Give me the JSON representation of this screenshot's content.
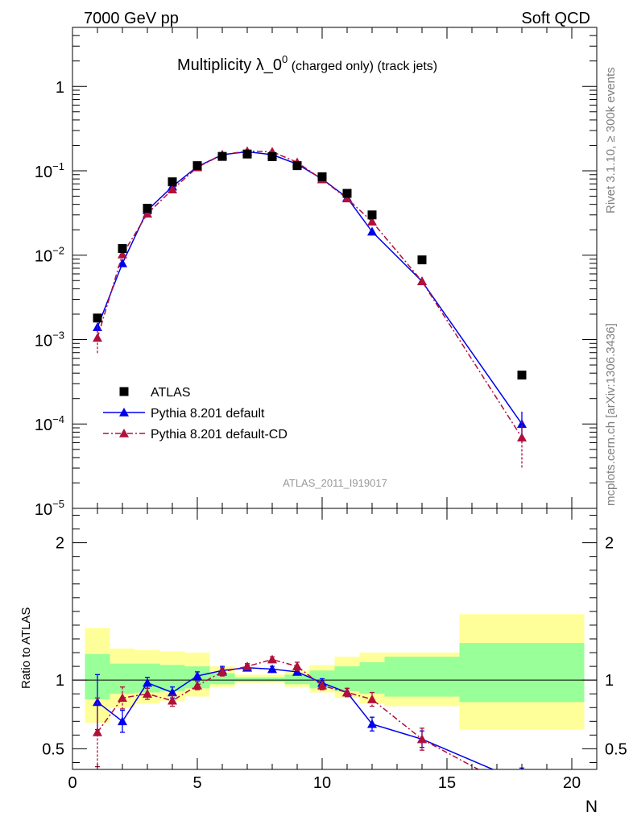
{
  "header": {
    "left": "7000 GeV pp",
    "right": "Soft QCD"
  },
  "side_text": {
    "rivet": "Rivet 3.1.10, ≥ 300k events",
    "mcplots": "mcplots.cern.ch [arXiv:1306.3436]"
  },
  "colors": {
    "atlas": "#000000",
    "default": "#0000ee",
    "cd": "#b0103a",
    "band_yellow": "#ffff99",
    "band_green": "#99ff99"
  },
  "chart_data": [
    {
      "type": "scatter",
      "panel": "main",
      "title_main": "Multiplicity λ_0",
      "title_sup": "0",
      "title_rest": " (charged only) (track jets)",
      "watermark": "ATLAS_2011_I919017",
      "yscale": "log",
      "ylim": [
        1e-05,
        5
      ],
      "xlim": [
        0,
        21
      ],
      "y_ticks": [
        {
          "value": 1,
          "base": "1",
          "exp": ""
        },
        {
          "value": 0.1,
          "base": "10",
          "exp": "−1"
        },
        {
          "value": 0.01,
          "base": "10",
          "exp": "−2"
        },
        {
          "value": 0.001,
          "base": "10",
          "exp": "−3"
        },
        {
          "value": 0.0001,
          "base": "10",
          "exp": "−4"
        },
        {
          "value": 1e-05,
          "base": "10",
          "exp": "−5"
        }
      ],
      "legend_position": "lower-left",
      "series": [
        {
          "name": "ATLAS",
          "marker": "square",
          "x": [
            1,
            2,
            3,
            4,
            5,
            6,
            7,
            8,
            9,
            10,
            11,
            12,
            14,
            18
          ],
          "y": [
            0.0018,
            0.012,
            0.036,
            0.074,
            0.115,
            0.148,
            0.158,
            0.147,
            0.115,
            0.085,
            0.054,
            0.03,
            0.0088,
            0.00038
          ]
        },
        {
          "name": "Pythia 8.201 default",
          "marker": "triangle",
          "line": "solid",
          "x": [
            1,
            2,
            3,
            4,
            5,
            6,
            7,
            8,
            9,
            10,
            11,
            12,
            14,
            18
          ],
          "y": [
            0.0014,
            0.008,
            0.034,
            0.065,
            0.112,
            0.155,
            0.168,
            0.155,
            0.12,
            0.08,
            0.048,
            0.019,
            0.0049,
            0.0001
          ],
          "err": [
            0.00018,
            0.0006,
            0.002,
            0.003,
            0.004,
            0.004,
            0.004,
            0.004,
            0.004,
            0.003,
            0.002,
            0.001,
            0.0004,
            4e-05
          ]
        },
        {
          "name": "Pythia 8.201 default-CD",
          "marker": "triangle",
          "line": "dashdot",
          "x": [
            1,
            2,
            3,
            4,
            5,
            6,
            7,
            8,
            9,
            10,
            11,
            12,
            14,
            18
          ],
          "y": [
            0.00105,
            0.0102,
            0.031,
            0.06,
            0.11,
            0.155,
            0.171,
            0.168,
            0.126,
            0.079,
            0.047,
            0.025,
            0.0049,
            6.9e-05
          ],
          "err": [
            0.00038,
            0.0008,
            0.002,
            0.003,
            0.004,
            0.004,
            0.004,
            0.004,
            0.004,
            0.003,
            0.002,
            0.0015,
            0.0004,
            4e-05
          ]
        }
      ]
    },
    {
      "type": "line",
      "panel": "ratio",
      "ylabel": "Ratio to ATLAS",
      "xlabel": "N",
      "xlim": [
        0,
        21
      ],
      "ylim": [
        0.35,
        2.25
      ],
      "x_ticks": [
        0,
        5,
        10,
        15,
        20
      ],
      "y_ticks": [
        0.5,
        1,
        2
      ],
      "y_tick_labels": [
        "0.5",
        "1",
        "2"
      ],
      "bands": {
        "x_edges": [
          0.5,
          1.5,
          2.5,
          3.5,
          4.5,
          5.5,
          6.5,
          7.5,
          8.5,
          9.5,
          10.5,
          11.5,
          12.5,
          15.5,
          20.5
        ],
        "yellow_low": [
          0.69,
          0.8,
          0.83,
          0.85,
          0.88,
          0.95,
          0.98,
          0.98,
          0.95,
          0.91,
          0.87,
          0.83,
          0.81,
          0.64
        ],
        "yellow_high": [
          1.38,
          1.23,
          1.22,
          1.21,
          1.2,
          1.1,
          1.04,
          1.04,
          1.07,
          1.11,
          1.17,
          1.2,
          1.2,
          1.48
        ],
        "green_low": [
          0.86,
          0.9,
          0.91,
          0.92,
          0.94,
          0.97,
          0.99,
          0.99,
          0.97,
          0.94,
          0.92,
          0.9,
          0.88,
          0.84
        ],
        "green_high": [
          1.19,
          1.12,
          1.12,
          1.11,
          1.1,
          1.05,
          1.02,
          1.02,
          1.04,
          1.07,
          1.1,
          1.13,
          1.17,
          1.27
        ]
      },
      "series": [
        {
          "name": "Pythia 8.201 default",
          "x": [
            1,
            2,
            3,
            4,
            5,
            6,
            7,
            8,
            9,
            10,
            11,
            12,
            14,
            18
          ],
          "y": [
            0.84,
            0.7,
            0.98,
            0.91,
            1.03,
            1.07,
            1.09,
            1.08,
            1.06,
            0.98,
            0.91,
            0.68,
            0.57,
            0.26
          ],
          "err": [
            0.2,
            0.08,
            0.04,
            0.04,
            0.03,
            0.03,
            0.02,
            0.02,
            0.02,
            0.03,
            0.03,
            0.05,
            0.06,
            0.1
          ]
        },
        {
          "name": "Pythia 8.201 default-CD",
          "x": [
            1,
            2,
            3,
            4,
            5,
            6,
            7,
            8,
            9,
            10,
            11,
            12,
            14,
            18
          ],
          "y": [
            0.62,
            0.87,
            0.9,
            0.85,
            0.96,
            1.06,
            1.1,
            1.15,
            1.1,
            0.96,
            0.91,
            0.86,
            0.57,
            0.18
          ],
          "err": [
            0.25,
            0.08,
            0.04,
            0.04,
            0.03,
            0.03,
            0.02,
            0.02,
            0.03,
            0.03,
            0.03,
            0.05,
            0.08,
            0.1
          ]
        }
      ]
    }
  ]
}
